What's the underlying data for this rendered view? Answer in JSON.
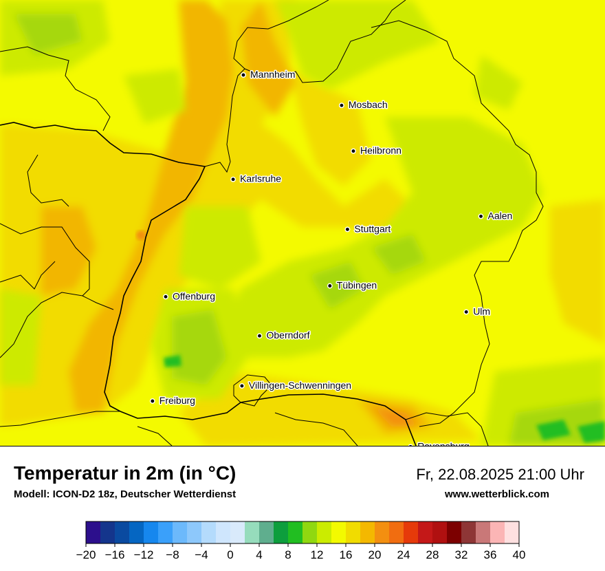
{
  "map": {
    "base_color": "#f4fa00",
    "cities": [
      {
        "name": "Mannheim",
        "lon": 8.47,
        "lat": 49.49
      },
      {
        "name": "Mosbach",
        "lon": 9.14,
        "lat": 49.35
      },
      {
        "name": "Heilbronn",
        "lon": 9.22,
        "lat": 49.14
      },
      {
        "name": "Karlsruhe",
        "lon": 8.4,
        "lat": 49.01
      },
      {
        "name": "Aalen",
        "lon": 10.09,
        "lat": 48.84
      },
      {
        "name": "Stuttgart",
        "lon": 9.18,
        "lat": 48.78
      },
      {
        "name": "Tübingen",
        "lon": 9.06,
        "lat": 48.52
      },
      {
        "name": "Offenburg",
        "lon": 7.94,
        "lat": 48.47
      },
      {
        "name": "Ulm",
        "lon": 9.99,
        "lat": 48.4
      },
      {
        "name": "Oberndorf",
        "lon": 8.58,
        "lat": 48.29
      },
      {
        "name": "Villingen-Schwenningen",
        "lon": 8.46,
        "lat": 48.06
      },
      {
        "name": "Freiburg",
        "lon": 7.85,
        "lat": 47.99
      },
      {
        "name": "Ravensburg",
        "lon": 9.61,
        "lat": 47.78
      }
    ]
  },
  "footer": {
    "title": "Temperatur in 2m (in °C)",
    "model": "Modell: ICON-D2 18z, Deutscher Wetterdienst",
    "datetime": "Fr, 22.08.2025 21:00 Uhr",
    "website": "www.wetterblick.com"
  },
  "legend": {
    "min": -20,
    "max": 40,
    "step": 2,
    "colors": [
      "#2c0f8c",
      "#14358c",
      "#0a4aa0",
      "#0566c2",
      "#1687ee",
      "#3aa0fa",
      "#6cb9fb",
      "#8dc8fb",
      "#b4dbfc",
      "#cfe6fd",
      "#d9eafb",
      "#96dcbc",
      "#5fae8e",
      "#0d9e3d",
      "#21be21",
      "#90d810",
      "#cbec00",
      "#f3fa00",
      "#f1dc00",
      "#f4b800",
      "#f38f10",
      "#f16d10",
      "#e63a0a",
      "#c41818",
      "#b01010",
      "#7c0000",
      "#8e3636",
      "#c97878",
      "#fbb5b5",
      "#fee0e0"
    ],
    "ticks": [
      "−20",
      "−16",
      "−12",
      "−8",
      "−4",
      "0",
      "4",
      "8",
      "12",
      "16",
      "20",
      "24",
      "28",
      "32",
      "36",
      "40"
    ]
  }
}
